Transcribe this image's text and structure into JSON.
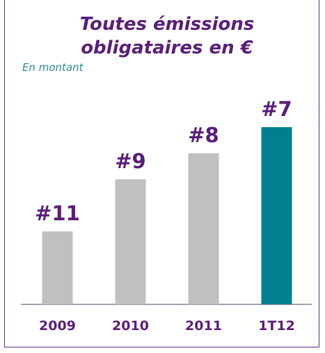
{
  "chart_data": {
    "type": "bar",
    "title": "Toutes émissions obligataires en €",
    "subtitle": "En montant",
    "categories": [
      "2009",
      "2010",
      "2011",
      "1T12"
    ],
    "values": [
      11,
      9,
      8,
      7
    ],
    "value_labels": [
      "#11",
      "#9",
      "#8",
      "#7"
    ],
    "colors": [
      "#c0c0c0",
      "#c0c0c0",
      "#c0c0c0",
      "#00808f"
    ],
    "ylim": [
      13.8,
      6
    ]
  }
}
